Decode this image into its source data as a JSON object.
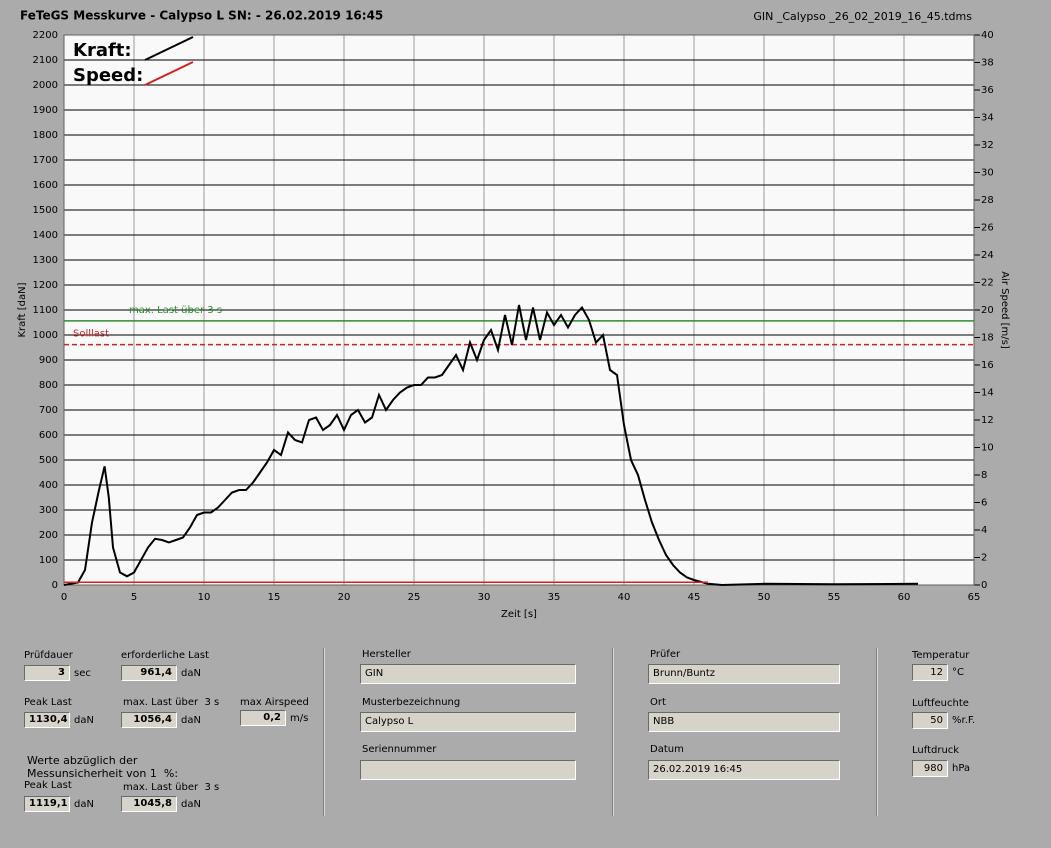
{
  "header": {
    "title": "FeTeGS Messkurve - Calypso L  SN:  - 26.02.2019 16:45",
    "file": "GIN _Calypso _26_02_2019_16_45.tdms"
  },
  "chart_data": {
    "type": "line",
    "xlabel": "Zeit [s]",
    "ylabel": "Kraft [daN]",
    "y2label": "Air Speed [m/s]",
    "xlim": [
      0,
      65
    ],
    "xticks": [
      0,
      5,
      10,
      15,
      20,
      25,
      30,
      35,
      40,
      45,
      50,
      55,
      60,
      65
    ],
    "ylim": [
      0,
      2200
    ],
    "yticks": [
      0,
      100,
      200,
      300,
      400,
      500,
      600,
      700,
      800,
      900,
      1000,
      1100,
      1200,
      1300,
      1400,
      1500,
      1600,
      1700,
      1800,
      1900,
      2000,
      2100,
      2200
    ],
    "y2lim": [
      0,
      40
    ],
    "y2ticks": [
      0,
      2,
      4,
      6,
      8,
      10,
      12,
      14,
      16,
      18,
      20,
      22,
      24,
      26,
      28,
      30,
      32,
      34,
      36,
      38,
      40
    ],
    "grid": true,
    "legend": "top-left",
    "series": [
      {
        "name": "Kraft:",
        "color": "#000000",
        "x": [
          0,
          1,
          1.5,
          2,
          2.5,
          2.9,
          3.2,
          3.5,
          4,
          4.5,
          5,
          5.5,
          6,
          6.5,
          7,
          7.5,
          8,
          8.5,
          9,
          9.5,
          10,
          10.5,
          11,
          11.5,
          12,
          12.5,
          13,
          13.5,
          14,
          14.5,
          15,
          15.5,
          16,
          16.5,
          17,
          17.5,
          18,
          18.5,
          19,
          19.5,
          20,
          20.5,
          21,
          21.5,
          22,
          22.5,
          23,
          23.5,
          24,
          24.5,
          25,
          25.5,
          26,
          26.5,
          27,
          27.5,
          28,
          28.5,
          29,
          29.5,
          30,
          30.5,
          31,
          31.5,
          32,
          32.5,
          33,
          33.5,
          34,
          34.5,
          35,
          35.5,
          36,
          36.5,
          37,
          37.5,
          38,
          38.5,
          39,
          39.5,
          40,
          40.5,
          41,
          41.5,
          42,
          42.5,
          43,
          43.5,
          44,
          44.5,
          45,
          46,
          47,
          50,
          55,
          61
        ],
        "values": [
          0,
          10,
          60,
          250,
          380,
          475,
          350,
          150,
          50,
          35,
          50,
          100,
          150,
          185,
          180,
          170,
          180,
          190,
          230,
          280,
          290,
          290,
          310,
          340,
          370,
          380,
          380,
          410,
          450,
          490,
          540,
          520,
          610,
          580,
          570,
          660,
          670,
          620,
          640,
          680,
          620,
          680,
          700,
          650,
          670,
          760,
          700,
          740,
          770,
          790,
          800,
          800,
          830,
          830,
          840,
          880,
          920,
          860,
          970,
          900,
          980,
          1020,
          940,
          1080,
          960,
          1120,
          980,
          1110,
          980,
          1090,
          1040,
          1080,
          1030,
          1080,
          1110,
          1060,
          970,
          1000,
          860,
          840,
          640,
          500,
          440,
          340,
          250,
          180,
          120,
          80,
          50,
          30,
          20,
          5,
          0,
          5,
          3,
          5
        ]
      },
      {
        "name": "Speed:",
        "color": "#d42020",
        "axis": "y2",
        "x": [
          0,
          46
        ],
        "values": [
          0.2,
          0.2
        ]
      }
    ],
    "reference_lines": [
      {
        "label": "max. Last über  3 s",
        "value": 1056.4,
        "color": "#2e8b2e",
        "style": "solid"
      },
      {
        "label": "Solllast",
        "value": 961.4,
        "color": "#d42020",
        "style": "dashed"
      }
    ]
  },
  "form": {
    "fields": [
      {
        "label": "Prüfdauer",
        "value": "3",
        "unit": "sec"
      },
      {
        "label": "erforderliche Last",
        "value": "961,4",
        "unit": "daN"
      },
      {
        "label": "Peak Last",
        "value": "1130,4",
        "unit": "daN"
      },
      {
        "label": "max. Last über  3 s",
        "value": "1056,4",
        "unit": "daN"
      },
      {
        "label": "max Airspeed",
        "value": "0,2",
        "unit": "m/s"
      },
      {
        "label": "Peak Last",
        "value": "1119,1",
        "unit": "daN"
      },
      {
        "label": "max. Last über  3 s",
        "value": "1045,8",
        "unit": "daN"
      },
      {
        "label": "Hersteller",
        "value": "GIN"
      },
      {
        "label": "Musterbezeichnung",
        "value": "Calypso L"
      },
      {
        "label": "Seriennummer"
      },
      {
        "label": "Prüfer",
        "value": "Brunn/Buntz"
      },
      {
        "label": "Ort",
        "value": "NBB"
      },
      {
        "label": "Datum",
        "value": "26.02.2019 16:45"
      },
      {
        "label": "Temperatur",
        "value": "12",
        "unit": "°C"
      },
      {
        "label": "Luftfeuchte",
        "value": "50",
        "unit": "%r.F."
      },
      {
        "label": "Luftdruck",
        "value": "980",
        "unit": "hPa"
      }
    ],
    "note": [
      "Werte abzüglich der",
      "Messunsicherheit von 1  %:"
    ]
  }
}
